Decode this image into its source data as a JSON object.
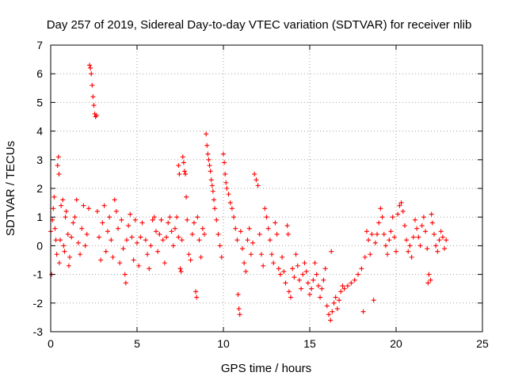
{
  "chart_data": {
    "type": "scatter",
    "title": "Day 257 of 2019, Sidereal Day-to-day VTEC variation (SDTVAR) for receiver nlib",
    "xlabel": "GPS time / hours",
    "ylabel": "SDTVAR / TECUs",
    "xlim": [
      0,
      25
    ],
    "ylim": [
      -3,
      7
    ],
    "xticks": [
      "0",
      "5",
      "10",
      "15",
      "20",
      "25"
    ],
    "yticks": [
      "-3",
      "-2",
      "-1",
      "0",
      "1",
      "2",
      "3",
      "4",
      "5",
      "6",
      "7"
    ],
    "grid": true,
    "marker": "plus",
    "color": "#ff0000",
    "series": [
      {
        "name": "nlib",
        "points": [
          [
            0.0,
            0.5
          ],
          [
            0.05,
            -1.0
          ],
          [
            0.1,
            0.9
          ],
          [
            0.15,
            1.3
          ],
          [
            0.2,
            1.7
          ],
          [
            0.25,
            0.6
          ],
          [
            0.3,
            0.2
          ],
          [
            0.35,
            -0.3
          ],
          [
            0.4,
            2.8
          ],
          [
            0.45,
            3.1
          ],
          [
            0.48,
            2.5
          ],
          [
            0.5,
            -0.6
          ],
          [
            0.55,
            0.2
          ],
          [
            0.6,
            1.4
          ],
          [
            0.7,
            1.6
          ],
          [
            0.75,
            0.0
          ],
          [
            0.8,
            -0.2
          ],
          [
            0.85,
            1.0
          ],
          [
            0.9,
            1.2
          ],
          [
            1.0,
            0.4
          ],
          [
            1.05,
            -0.7
          ],
          [
            1.1,
            -0.4
          ],
          [
            1.2,
            0.3
          ],
          [
            1.3,
            0.8
          ],
          [
            1.4,
            1.0
          ],
          [
            1.5,
            1.6
          ],
          [
            1.6,
            0.1
          ],
          [
            1.7,
            -0.3
          ],
          [
            1.8,
            0.6
          ],
          [
            1.9,
            1.4
          ],
          [
            2.0,
            0.0
          ],
          [
            2.1,
            0.4
          ],
          [
            2.2,
            1.3
          ],
          [
            2.25,
            6.3
          ],
          [
            2.3,
            6.2
          ],
          [
            2.35,
            6.0
          ],
          [
            2.4,
            5.6
          ],
          [
            2.45,
            5.2
          ],
          [
            2.5,
            4.9
          ],
          [
            2.55,
            4.6
          ],
          [
            2.6,
            4.5
          ],
          [
            2.65,
            4.55
          ],
          [
            2.7,
            1.2
          ],
          [
            2.8,
            0.3
          ],
          [
            2.9,
            -0.5
          ],
          [
            3.0,
            0.8
          ],
          [
            3.1,
            1.4
          ],
          [
            3.2,
            -0.2
          ],
          [
            3.3,
            0.5
          ],
          [
            3.4,
            1.0
          ],
          [
            3.5,
            0.2
          ],
          [
            3.6,
            -0.4
          ],
          [
            3.7,
            1.6
          ],
          [
            3.8,
            1.2
          ],
          [
            3.9,
            0.6
          ],
          [
            4.0,
            -0.6
          ],
          [
            4.1,
            0.9
          ],
          [
            4.2,
            -0.1
          ],
          [
            4.3,
            -1.0
          ],
          [
            4.35,
            -1.3
          ],
          [
            4.4,
            0.2
          ],
          [
            4.5,
            0.7
          ],
          [
            4.6,
            1.1
          ],
          [
            4.7,
            0.3
          ],
          [
            4.8,
            -0.5
          ],
          [
            4.9,
            0.9
          ],
          [
            5.0,
            0.1
          ],
          [
            5.1,
            -0.7
          ],
          [
            5.2,
            0.3
          ],
          [
            5.3,
            0.8
          ],
          [
            5.5,
            0.2
          ],
          [
            5.6,
            -0.3
          ],
          [
            5.7,
            -0.8
          ],
          [
            5.8,
            0.0
          ],
          [
            5.9,
            0.9
          ],
          [
            6.0,
            1.0
          ],
          [
            6.1,
            0.5
          ],
          [
            6.2,
            -0.2
          ],
          [
            6.3,
            0.4
          ],
          [
            6.4,
            0.9
          ],
          [
            6.5,
            0.2
          ],
          [
            6.6,
            -0.6
          ],
          [
            6.7,
            0.3
          ],
          [
            6.8,
            0.8
          ],
          [
            6.9,
            1.0
          ],
          [
            7.0,
            0.5
          ],
          [
            7.1,
            0.0
          ],
          [
            7.2,
            0.6
          ],
          [
            7.3,
            1.0
          ],
          [
            7.4,
            0.3
          ],
          [
            7.5,
            -0.8
          ],
          [
            7.55,
            -0.9
          ],
          [
            7.6,
            0.2
          ],
          [
            7.65,
            3.1
          ],
          [
            7.7,
            2.9
          ],
          [
            7.75,
            2.6
          ],
          [
            7.8,
            2.5
          ],
          [
            7.85,
            1.7
          ],
          [
            7.9,
            0.9
          ],
          [
            8.0,
            -0.3
          ],
          [
            7.4,
            2.8
          ],
          [
            7.45,
            2.5
          ],
          [
            8.1,
            -0.5
          ],
          [
            8.2,
            0.4
          ],
          [
            8.3,
            0.8
          ],
          [
            8.4,
            -1.6
          ],
          [
            8.45,
            -1.8
          ],
          [
            8.5,
            1.0
          ],
          [
            8.6,
            0.2
          ],
          [
            8.7,
            -0.4
          ],
          [
            8.8,
            0.6
          ],
          [
            8.9,
            0.4
          ],
          [
            9.0,
            3.9
          ],
          [
            9.05,
            3.5
          ],
          [
            9.1,
            3.2
          ],
          [
            9.15,
            3.0
          ],
          [
            9.2,
            2.8
          ],
          [
            9.25,
            2.6
          ],
          [
            9.3,
            2.3
          ],
          [
            9.35,
            2.1
          ],
          [
            9.4,
            1.9
          ],
          [
            9.45,
            1.6
          ],
          [
            9.5,
            1.3
          ],
          [
            9.6,
            0.9
          ],
          [
            9.7,
            0.4
          ],
          [
            9.8,
            0.0
          ],
          [
            9.9,
            -0.4
          ],
          [
            10.0,
            3.2
          ],
          [
            10.05,
            2.9
          ],
          [
            10.1,
            2.5
          ],
          [
            10.15,
            2.2
          ],
          [
            10.2,
            2.0
          ],
          [
            10.3,
            1.8
          ],
          [
            10.4,
            1.5
          ],
          [
            10.5,
            1.3
          ],
          [
            10.6,
            1.0
          ],
          [
            10.7,
            0.6
          ],
          [
            10.8,
            0.2
          ],
          [
            10.85,
            -1.7
          ],
          [
            10.9,
            -2.2
          ],
          [
            10.95,
            -2.4
          ],
          [
            11.0,
            0.5
          ],
          [
            11.1,
            -0.1
          ],
          [
            11.2,
            -0.6
          ],
          [
            11.3,
            -0.9
          ],
          [
            11.4,
            0.2
          ],
          [
            11.5,
            0.6
          ],
          [
            11.6,
            -0.3
          ],
          [
            11.7,
            0.1
          ],
          [
            11.8,
            2.5
          ],
          [
            11.9,
            2.3
          ],
          [
            12.0,
            2.1
          ],
          [
            12.1,
            0.4
          ],
          [
            12.2,
            -0.3
          ],
          [
            12.3,
            -0.7
          ],
          [
            12.4,
            1.3
          ],
          [
            12.5,
            1.0
          ],
          [
            12.6,
            0.6
          ],
          [
            12.7,
            0.2
          ],
          [
            12.8,
            -0.3
          ],
          [
            12.9,
            -0.6
          ],
          [
            13.0,
            0.8
          ],
          [
            13.1,
            0.4
          ],
          [
            13.2,
            -0.8
          ],
          [
            13.3,
            -1.0
          ],
          [
            13.4,
            -0.4
          ],
          [
            13.5,
            -0.9
          ],
          [
            13.6,
            -1.3
          ],
          [
            13.7,
            0.7
          ],
          [
            13.75,
            0.4
          ],
          [
            13.8,
            -1.6
          ],
          [
            13.9,
            -1.8
          ],
          [
            14.0,
            -0.8
          ],
          [
            14.1,
            -1.1
          ],
          [
            14.2,
            -0.3
          ],
          [
            14.3,
            -0.7
          ],
          [
            14.4,
            -1.2
          ],
          [
            14.5,
            -1.5
          ],
          [
            14.6,
            -1.0
          ],
          [
            14.7,
            -0.6
          ],
          [
            14.8,
            -0.9
          ],
          [
            14.9,
            -1.3
          ],
          [
            15.0,
            -1.7
          ],
          [
            15.1,
            -1.5
          ],
          [
            15.2,
            -1.2
          ],
          [
            15.3,
            -0.6
          ],
          [
            15.4,
            -1.0
          ],
          [
            15.5,
            -1.4
          ],
          [
            15.6,
            -1.8
          ],
          [
            15.7,
            -1.5
          ],
          [
            15.8,
            -1.2
          ],
          [
            15.9,
            -0.8
          ],
          [
            16.0,
            -2.1
          ],
          [
            16.1,
            -2.4
          ],
          [
            16.2,
            -2.6
          ],
          [
            16.25,
            -0.2
          ],
          [
            16.3,
            -2.3
          ],
          [
            16.4,
            -2.0
          ],
          [
            16.5,
            -1.8
          ],
          [
            16.6,
            -2.2
          ],
          [
            16.7,
            -1.9
          ],
          [
            16.8,
            -1.6
          ],
          [
            16.9,
            -1.4
          ],
          [
            17.0,
            -1.5
          ],
          [
            17.2,
            -1.4
          ],
          [
            17.4,
            -1.3
          ],
          [
            17.6,
            -1.2
          ],
          [
            17.8,
            -1.0
          ],
          [
            18.0,
            -0.8
          ],
          [
            18.1,
            -2.3
          ],
          [
            18.2,
            -0.4
          ],
          [
            18.3,
            0.5
          ],
          [
            18.4,
            0.2
          ],
          [
            18.5,
            -0.3
          ],
          [
            18.6,
            0.4
          ],
          [
            18.7,
            -1.9
          ],
          [
            18.8,
            0.1
          ],
          [
            18.9,
            0.4
          ],
          [
            19.0,
            0.8
          ],
          [
            19.1,
            1.3
          ],
          [
            19.2,
            1.0
          ],
          [
            19.3,
            0.4
          ],
          [
            19.4,
            0.0
          ],
          [
            19.5,
            -0.3
          ],
          [
            19.6,
            0.2
          ],
          [
            19.7,
            0.5
          ],
          [
            19.8,
            1.0
          ],
          [
            19.9,
            0.3
          ],
          [
            20.0,
            -0.2
          ],
          [
            20.1,
            1.1
          ],
          [
            20.2,
            1.4
          ],
          [
            20.3,
            1.5
          ],
          [
            20.4,
            1.2
          ],
          [
            20.5,
            0.7
          ],
          [
            20.6,
            0.2
          ],
          [
            20.7,
            -0.2
          ],
          [
            20.8,
            0.0
          ],
          [
            20.9,
            -0.4
          ],
          [
            21.0,
            0.3
          ],
          [
            21.1,
            0.9
          ],
          [
            21.2,
            0.6
          ],
          [
            21.3,
            0.3
          ],
          [
            21.4,
            0.0
          ],
          [
            21.5,
            0.7
          ],
          [
            21.6,
            1.0
          ],
          [
            21.7,
            0.5
          ],
          [
            21.8,
            -0.1
          ],
          [
            21.9,
            -1.0
          ],
          [
            22.0,
            -1.2
          ],
          [
            22.1,
            0.8
          ],
          [
            22.2,
            0.4
          ],
          [
            22.3,
            0.0
          ],
          [
            22.4,
            -0.2
          ],
          [
            22.5,
            0.2
          ],
          [
            22.6,
            0.5
          ],
          [
            22.7,
            0.3
          ],
          [
            22.8,
            -0.1
          ],
          [
            22.9,
            0.2
          ],
          [
            21.85,
            -1.3
          ],
          [
            22.05,
            1.1
          ]
        ]
      }
    ]
  }
}
